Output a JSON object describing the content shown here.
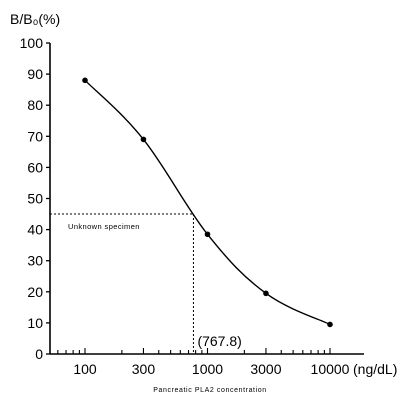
{
  "chart_data": {
    "type": "line",
    "title": "",
    "ylabel": "B/B₀(%)",
    "xlabel": "Pancreatic PLA2 concentration",
    "x_unit": "(ng/dL)",
    "x_scale": "log",
    "xlim": [
      50,
      15000
    ],
    "ylim": [
      0,
      100
    ],
    "y_ticks": [
      0,
      10,
      20,
      30,
      40,
      50,
      60,
      70,
      80,
      90,
      100
    ],
    "x_ticks": [
      100,
      300,
      1000,
      3000,
      10000
    ],
    "x_tick_labels": [
      "100",
      "300",
      "1000",
      "3000",
      "10000"
    ],
    "grid": false,
    "series": [
      {
        "x": [
          100,
          300,
          1000,
          3000,
          10000
        ],
        "y": [
          88,
          69,
          38.5,
          19.5,
          9.5
        ],
        "marker": "circle",
        "line": "smooth",
        "color": "#000000"
      }
    ],
    "annotation": {
      "label": "Unknown specimen",
      "y_value": 45,
      "x_value": 767.8,
      "x_value_label": "(767.8)",
      "line_style": "dashed"
    }
  }
}
